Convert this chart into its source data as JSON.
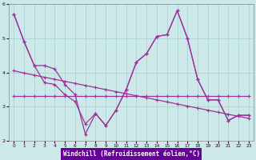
{
  "xlabel": "Windchill (Refroidissement éolien,°C)",
  "xlim": [
    -0.5,
    23.5
  ],
  "ylim": [
    2,
    6
  ],
  "yticks": [
    2,
    3,
    4,
    5,
    6
  ],
  "xticks": [
    0,
    1,
    2,
    3,
    4,
    5,
    6,
    7,
    8,
    9,
    10,
    11,
    12,
    13,
    14,
    15,
    16,
    17,
    18,
    19,
    20,
    21,
    22,
    23
  ],
  "background_color": "#cce8e8",
  "grid_color": "#aad4d4",
  "line_color": "#993399",
  "xlabel_bg": "#6600aa",
  "line1_x": [
    0,
    1,
    2,
    3,
    4,
    5,
    6,
    7,
    8,
    9,
    10,
    11,
    12,
    13,
    14,
    15,
    16,
    17,
    18,
    19,
    20,
    21,
    22,
    23
  ],
  "line1_y": [
    5.7,
    4.9,
    4.2,
    3.7,
    3.65,
    3.35,
    3.15,
    2.5,
    2.8,
    2.45,
    2.9,
    3.5,
    4.3,
    4.55,
    5.05,
    5.1,
    5.8,
    5.0,
    3.8,
    3.2,
    3.2,
    2.6,
    2.75,
    2.75
  ],
  "line2_x": [
    0,
    1,
    2,
    3,
    4,
    5,
    6,
    7,
    8,
    9,
    10,
    11,
    12,
    13,
    14,
    15,
    16,
    17,
    18,
    19,
    20,
    21,
    22,
    23
  ],
  "line2_y": [
    5.7,
    4.9,
    4.2,
    4.2,
    4.1,
    3.65,
    3.35,
    2.2,
    2.8,
    2.45,
    2.9,
    3.5,
    4.3,
    4.55,
    5.05,
    5.1,
    5.8,
    5.0,
    3.8,
    3.2,
    3.2,
    2.6,
    2.75,
    2.75
  ],
  "line3_x": [
    0,
    1,
    2,
    3,
    4,
    5,
    6,
    7,
    8,
    9,
    10,
    11,
    12,
    13,
    14,
    15,
    16,
    17,
    18,
    19,
    20,
    21,
    22,
    23
  ],
  "line3_y": [
    3.32,
    3.32,
    3.32,
    3.32,
    3.32,
    3.32,
    3.32,
    3.32,
    3.32,
    3.32,
    3.32,
    3.32,
    3.32,
    3.32,
    3.32,
    3.32,
    3.32,
    3.32,
    3.32,
    3.32,
    3.32,
    3.32,
    3.32,
    3.32
  ],
  "line4_x": [
    0,
    1,
    2,
    3,
    4,
    5,
    6,
    7,
    8,
    9,
    10,
    11,
    12,
    13,
    14,
    15,
    16,
    17,
    18,
    19,
    20,
    21,
    22,
    23
  ],
  "line4_y": [
    4.05,
    3.98,
    3.92,
    3.86,
    3.8,
    3.74,
    3.68,
    3.62,
    3.56,
    3.5,
    3.44,
    3.38,
    3.32,
    3.26,
    3.2,
    3.14,
    3.08,
    3.02,
    2.96,
    2.9,
    2.84,
    2.78,
    2.72,
    2.66
  ]
}
